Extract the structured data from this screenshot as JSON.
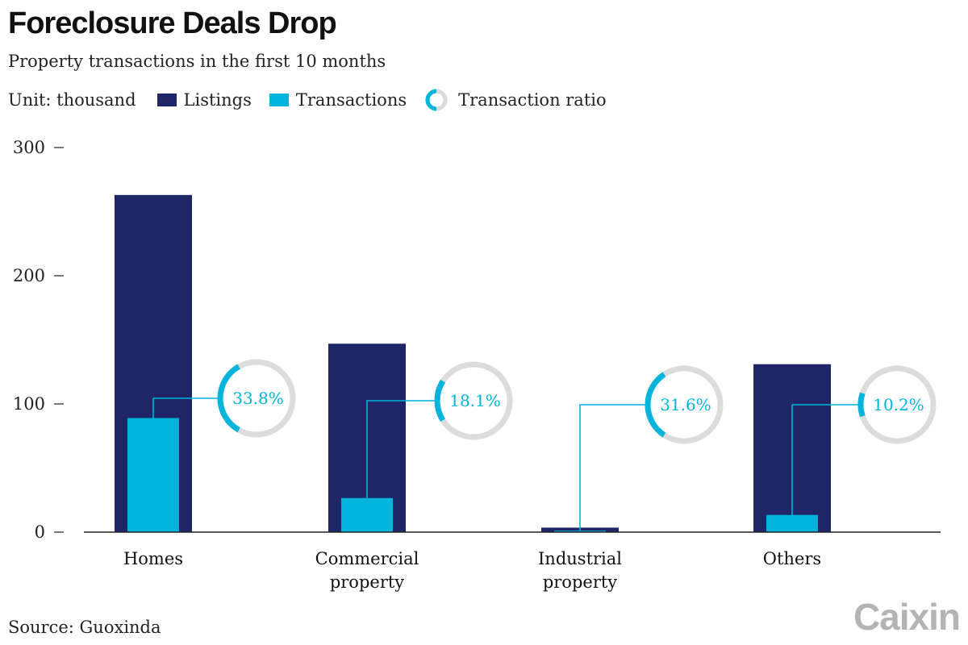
{
  "header": {
    "title": "Foreclosure Deals Drop",
    "subtitle": "Property transactions in the first 10 months"
  },
  "legend": {
    "unit": "Unit: thousand",
    "listings": "Listings",
    "transactions": "Transactions",
    "ratio": "Transaction ratio"
  },
  "footer": {
    "source": "Source: Guoxinda",
    "logo": "Caixin"
  },
  "colors": {
    "listings": "#1f2668",
    "transactions": "#00b4dc",
    "ring_bg": "#dcdcdc",
    "axis": "#222222"
  },
  "chart_data": {
    "type": "bar",
    "categories": [
      "Homes",
      "Commercial property",
      "Industrial property",
      "Others"
    ],
    "category_lines": [
      [
        "Homes"
      ],
      [
        "Commercial",
        "property"
      ],
      [
        "Industrial",
        "property"
      ],
      [
        "Others"
      ]
    ],
    "series": [
      {
        "name": "Listings",
        "values": [
          263,
          147,
          3.5,
          131
        ]
      },
      {
        "name": "Transactions",
        "values": [
          89,
          26.6,
          1.1,
          13.4
        ]
      }
    ],
    "ratio": {
      "name": "Transaction ratio",
      "values": [
        33.8,
        18.1,
        31.6,
        10.2
      ],
      "labels": [
        "33.8%",
        "18.1%",
        "31.6%",
        "10.2%"
      ]
    },
    "ylim": [
      0,
      300
    ],
    "yticks": [
      0,
      100,
      200,
      300
    ],
    "grid": false,
    "legend_position": "top-left"
  }
}
